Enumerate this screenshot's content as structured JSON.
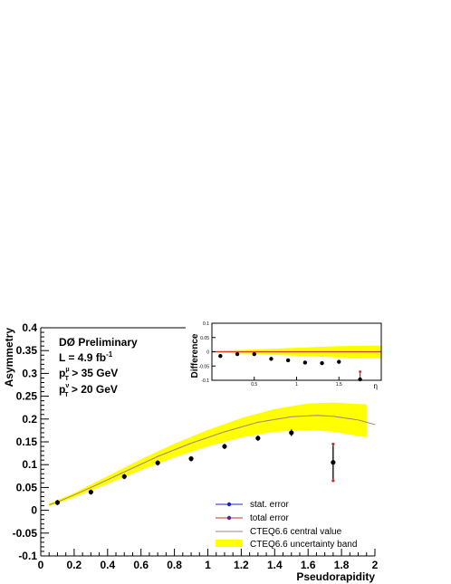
{
  "chart_data": [
    {
      "type": "scatter",
      "xlabel": "Pseudorapidity",
      "ylabel": "Asymmetry",
      "xlim": [
        0,
        2
      ],
      "ylim": [
        -0.1,
        0.4
      ],
      "x_ticks": [
        "0",
        "0.2",
        "0.4",
        "0.6",
        "0.8",
        "1",
        "1.2",
        "1.4",
        "1.6",
        "1.8",
        "2"
      ],
      "y_ticks": [
        "-0.1",
        "-0.05",
        "0",
        "0.05",
        "0.1",
        "0.15",
        "0.2",
        "0.25",
        "0.3",
        "0.35",
        "0.4"
      ],
      "grid": false,
      "legend_position": "bottom-right",
      "annotations": {
        "line1": "DØ Preliminary",
        "line2": "L = 4.9 fb",
        "line2_sup": "-1",
        "line3_a": "p",
        "line3_sub": "T",
        "line3_sup": "μ",
        "line3_b": " > 35 GeV",
        "line4_a": "p",
        "line4_sub": "T",
        "line4_sup": "ν",
        "line4_b": " > 20 GeV"
      },
      "legend": [
        {
          "label": "stat. error",
          "color": "#1f1fd0"
        },
        {
          "label": "total error",
          "color": "#c03030"
        },
        {
          "label": "CTEQ6.6 central value",
          "color": "#a08080"
        },
        {
          "label": "CTEQ6.6 uncertainty band",
          "color": "#ffff00"
        }
      ],
      "series": [
        {
          "name": "data",
          "points": [
            {
              "x": 0.1,
              "y": 0.017,
              "stat": 0.004,
              "total": 0.006
            },
            {
              "x": 0.3,
              "y": 0.04,
              "stat": 0.004,
              "total": 0.006
            },
            {
              "x": 0.5,
              "y": 0.074,
              "stat": 0.004,
              "total": 0.006
            },
            {
              "x": 0.7,
              "y": 0.104,
              "stat": 0.004,
              "total": 0.006
            },
            {
              "x": 0.9,
              "y": 0.113,
              "stat": 0.004,
              "total": 0.006
            },
            {
              "x": 1.1,
              "y": 0.14,
              "stat": 0.004,
              "total": 0.006
            },
            {
              "x": 1.3,
              "y": 0.158,
              "stat": 0.004,
              "total": 0.006
            },
            {
              "x": 1.5,
              "y": 0.17,
              "stat": 0.006,
              "total": 0.008
            },
            {
              "x": 1.75,
              "y": 0.105,
              "stat": 0.036,
              "total": 0.04
            }
          ]
        },
        {
          "name": "CTEQ6.6 central value",
          "x": [
            0.05,
            0.1,
            0.3,
            0.5,
            0.7,
            0.9,
            1.1,
            1.3,
            1.5,
            1.65,
            1.75,
            1.9,
            2.0
          ],
          "y": [
            0.012,
            0.018,
            0.05,
            0.084,
            0.118,
            0.147,
            0.172,
            0.193,
            0.205,
            0.208,
            0.206,
            0.198,
            0.188
          ]
        },
        {
          "name": "CTEQ6.6 uncertainty band",
          "x": [
            0.05,
            0.2,
            0.4,
            0.6,
            0.8,
            1.0,
            1.2,
            1.4,
            1.6,
            1.75,
            1.95
          ],
          "low": [
            0.009,
            0.028,
            0.058,
            0.088,
            0.116,
            0.14,
            0.16,
            0.172,
            0.176,
            0.172,
            0.16
          ],
          "high": [
            0.015,
            0.038,
            0.075,
            0.112,
            0.146,
            0.176,
            0.202,
            0.222,
            0.234,
            0.236,
            0.232
          ]
        }
      ]
    },
    {
      "type": "scatter",
      "ylabel": "Difference",
      "xlabel": "η",
      "xlim": [
        0,
        2
      ],
      "ylim": [
        -0.1,
        0.1
      ],
      "y_ticks": [
        "0.1",
        "0.05",
        "0",
        "-0.05",
        "-0.1"
      ],
      "x_ticks": [
        "0.5",
        "1",
        "1.5"
      ],
      "points": [
        {
          "x": 0.1,
          "y": -0.015
        },
        {
          "x": 0.3,
          "y": -0.008
        },
        {
          "x": 0.5,
          "y": -0.008
        },
        {
          "x": 0.7,
          "y": -0.025
        },
        {
          "x": 0.9,
          "y": -0.03
        },
        {
          "x": 1.1,
          "y": -0.038
        },
        {
          "x": 1.3,
          "y": -0.04
        },
        {
          "x": 1.5,
          "y": -0.035
        },
        {
          "x": 1.75,
          "y": -0.1,
          "err": 0.03
        }
      ],
      "band": {
        "x": [
          0.0,
          0.5,
          1.0,
          1.5,
          2.0
        ],
        "low": [
          -0.003,
          -0.008,
          -0.014,
          -0.02,
          -0.022
        ],
        "high": [
          0.003,
          0.008,
          0.014,
          0.02,
          0.022
        ]
      }
    }
  ]
}
